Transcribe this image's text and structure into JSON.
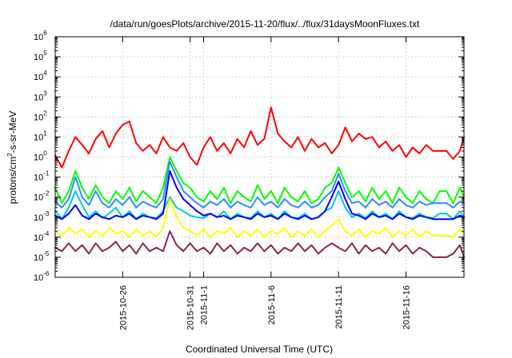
{
  "chart_data": {
    "type": "line",
    "title": "/data/run/goesPlots/archive/2015-11-20/flux/../flux/31daysMoonFluxes.txt",
    "xlabel": "Coordinated Universal Time (UTC)",
    "ylabel": "protons/cm²-s-sr-MeV",
    "ylabel_parts": {
      "a": "protons/cm",
      "b": "2",
      "c": "-s-sr-MeV"
    },
    "yscale": "log",
    "ylim": [
      1e-06,
      1000000.0
    ],
    "xlim_days": [
      0,
      30.3
    ],
    "grid": true,
    "legend": "none",
    "y_ticks": [
      {
        "exp": -6,
        "base": "10",
        "sup": "-6"
      },
      {
        "exp": -5,
        "base": "10",
        "sup": "-5"
      },
      {
        "exp": -4,
        "base": "10",
        "sup": "-4"
      },
      {
        "exp": -3,
        "base": "10",
        "sup": "-3"
      },
      {
        "exp": -2,
        "base": "10",
        "sup": "-2"
      },
      {
        "exp": -1,
        "base": "10",
        "sup": "-1"
      },
      {
        "exp": 0,
        "base": "10",
        "sup": "0"
      },
      {
        "exp": 1,
        "base": "10",
        "sup": "1"
      },
      {
        "exp": 2,
        "base": "10",
        "sup": "2"
      },
      {
        "exp": 3,
        "base": "10",
        "sup": "3"
      },
      {
        "exp": 4,
        "base": "10",
        "sup": "4"
      },
      {
        "exp": 5,
        "base": "10",
        "sup": "5"
      },
      {
        "exp": 6,
        "base": "10",
        "sup": "6"
      }
    ],
    "x_ticks": [
      {
        "day": 5.0,
        "label": "2015-10-26"
      },
      {
        "day": 10.0,
        "label": "2015-10-31"
      },
      {
        "day": 11.0,
        "label": "2015-11-1"
      },
      {
        "day": 16.0,
        "label": "2015-11-6"
      },
      {
        "day": 21.0,
        "label": "2015-11-11"
      },
      {
        "day": 26.0,
        "label": "2015-11-16"
      }
    ],
    "series": [
      {
        "name": "red",
        "color": "#ff0000",
        "x": [
          0,
          0.5,
          1,
          1.5,
          2,
          2.5,
          3,
          3.5,
          4,
          4.5,
          5,
          5.5,
          6,
          6.5,
          7,
          7.5,
          8,
          8.5,
          9,
          9.5,
          10,
          10.5,
          11,
          11.5,
          12,
          12.5,
          13,
          13.5,
          14,
          14.5,
          15,
          15.5,
          16,
          16.5,
          17,
          17.5,
          18,
          18.5,
          19,
          19.5,
          20,
          20.5,
          21,
          21.5,
          22,
          22.5,
          23,
          23.5,
          24,
          24.5,
          25,
          25.5,
          26,
          26.5,
          27,
          27.5,
          28,
          28.5,
          29,
          29.5,
          30,
          30.3
        ],
        "values": [
          1.2,
          0.3,
          2,
          10,
          4,
          1.5,
          8,
          20,
          3,
          15,
          40,
          60,
          5,
          2,
          4,
          1.5,
          10,
          3,
          2,
          5,
          1,
          0.4,
          3,
          10,
          2,
          5,
          1.5,
          8,
          3,
          20,
          4,
          8,
          300,
          15,
          6,
          3,
          10,
          2,
          8,
          3,
          5,
          1.5,
          4,
          30,
          6,
          15,
          8,
          10,
          3,
          6,
          2,
          4,
          1,
          3,
          1.5,
          4,
          2,
          2,
          2,
          0.8,
          2,
          10
        ]
      },
      {
        "name": "green",
        "color": "#00ff00",
        "x": [
          0,
          0.5,
          1,
          1.5,
          2,
          2.5,
          3,
          3.5,
          4,
          4.5,
          5,
          5.5,
          6,
          6.5,
          7,
          7.5,
          8,
          8.5,
          9,
          9.5,
          10,
          10.5,
          11,
          11.5,
          12,
          12.5,
          13,
          13.5,
          14,
          14.5,
          15,
          15.5,
          16,
          16.5,
          17,
          17.5,
          18,
          18.5,
          19,
          19.5,
          20,
          20.5,
          21,
          21.5,
          22,
          22.5,
          23,
          23.5,
          24,
          24.5,
          25,
          25.5,
          26,
          26.5,
          27,
          27.5,
          28,
          28.5,
          29,
          29.5,
          30,
          30.3
        ],
        "values": [
          0.03,
          0.005,
          0.02,
          0.2,
          0.03,
          0.008,
          0.04,
          0.01,
          0.005,
          0.02,
          0.008,
          0.03,
          0.006,
          0.02,
          0.01,
          0.005,
          0.03,
          1.0,
          0.2,
          0.05,
          0.03,
          0.01,
          0.006,
          0.02,
          0.008,
          0.03,
          0.005,
          0.02,
          0.01,
          0.006,
          0.04,
          0.008,
          0.02,
          0.005,
          0.03,
          0.01,
          0.006,
          0.02,
          0.005,
          0.008,
          0.03,
          0.05,
          0.3,
          0.05,
          0.01,
          0.02,
          0.006,
          0.03,
          0.008,
          0.02,
          0.005,
          0.03,
          0.01,
          0.005,
          0.02,
          0.008,
          0.005,
          0.02,
          0.02,
          0.005,
          0.03,
          0.01
        ]
      },
      {
        "name": "cyan",
        "color": "#00c8d8",
        "x": [
          0,
          0.5,
          1,
          1.5,
          2,
          2.5,
          3,
          3.5,
          4,
          4.5,
          5,
          5.5,
          6,
          6.5,
          7,
          7.5,
          8,
          8.5,
          9,
          9.5,
          10,
          10.5,
          11,
          11.5,
          12,
          12.5,
          13,
          13.5,
          14,
          14.5,
          15,
          15.5,
          16,
          16.5,
          17,
          17.5,
          18,
          18.5,
          19,
          19.5,
          20,
          20.5,
          21,
          21.5,
          22,
          22.5,
          23,
          23.5,
          24,
          24.5,
          25,
          25.5,
          26,
          26.5,
          27,
          27.5,
          28,
          28.5,
          29,
          29.5,
          30,
          30.3
        ],
        "values": [
          0.002,
          0.0008,
          0.003,
          0.02,
          0.004,
          0.001,
          0.002,
          0.0009,
          0.0015,
          0.003,
          0.001,
          0.002,
          0.0008,
          0.0015,
          0.001,
          0.0009,
          0.002,
          0.01,
          0.003,
          0.002,
          0.0012,
          0.001,
          0.0009,
          0.0015,
          0.001,
          0.002,
          0.0008,
          0.0015,
          0.001,
          0.0009,
          0.002,
          0.001,
          0.0015,
          0.0008,
          0.002,
          0.001,
          0.0009,
          0.0015,
          0.0008,
          0.001,
          0.002,
          0.003,
          0.02,
          0.003,
          0.001,
          0.0015,
          0.0009,
          0.002,
          0.001,
          0.0015,
          0.0008,
          0.002,
          0.001,
          0.0009,
          0.0015,
          0.001,
          0.0009,
          0.0015,
          0.0015,
          0.0008,
          0.002,
          0.001
        ]
      },
      {
        "name": "light-blue",
        "color": "#2f8cff",
        "x": [
          0,
          0.5,
          1,
          1.5,
          2,
          2.5,
          3,
          3.5,
          4,
          4.5,
          5,
          5.5,
          6,
          6.5,
          7,
          7.5,
          8,
          8.5,
          9,
          9.5,
          10,
          10.5,
          11,
          11.5,
          12,
          12.5,
          13,
          13.5,
          14,
          14.5,
          15,
          15.5,
          16,
          16.5,
          17,
          17.5,
          18,
          18.5,
          19,
          19.5,
          20,
          20.5,
          21,
          21.5,
          22,
          22.5,
          23,
          23.5,
          24,
          24.5,
          25,
          25.5,
          26,
          26.5,
          27,
          27.5,
          28,
          28.5,
          29,
          29.5,
          30,
          30.3
        ],
        "values": [
          0.006,
          0.003,
          0.008,
          0.1,
          0.01,
          0.004,
          0.02,
          0.005,
          0.003,
          0.008,
          0.004,
          0.01,
          0.003,
          0.006,
          0.004,
          0.003,
          0.008,
          0.6,
          0.1,
          0.02,
          0.01,
          0.005,
          0.003,
          0.006,
          0.004,
          0.008,
          0.003,
          0.006,
          0.004,
          0.003,
          0.01,
          0.004,
          0.006,
          0.003,
          0.008,
          0.004,
          0.003,
          0.006,
          0.003,
          0.004,
          0.01,
          0.02,
          0.15,
          0.02,
          0.005,
          0.006,
          0.003,
          0.008,
          0.004,
          0.006,
          0.003,
          0.008,
          0.004,
          0.003,
          0.006,
          0.004,
          0.005,
          0.005,
          0.005,
          0.003,
          0.006,
          0.005
        ]
      },
      {
        "name": "blue",
        "color": "#0000ff",
        "x": [
          0,
          0.5,
          1,
          1.5,
          2,
          2.5,
          3,
          3.5,
          4,
          4.5,
          5,
          5.5,
          6,
          6.5,
          7,
          7.5,
          8,
          8.5,
          9,
          9.5,
          10,
          10.5,
          11,
          11.5,
          12,
          12.5,
          13,
          13.5,
          14,
          14.5,
          15,
          15.5,
          16,
          16.5,
          17,
          17.5,
          18,
          18.5,
          19,
          19.5,
          20,
          20.5,
          21,
          21.5,
          22,
          22.5,
          23,
          23.5,
          24,
          24.5,
          25,
          25.5,
          26,
          26.5,
          27,
          27.5,
          28,
          28.5,
          29,
          29.5,
          30,
          30.3
        ],
        "values": [
          0.0012,
          0.0008,
          0.0015,
          0.004,
          0.0012,
          0.0008,
          0.0015,
          0.001,
          0.0008,
          0.0012,
          0.001,
          0.0015,
          0.0008,
          0.0012,
          0.001,
          0.0008,
          0.0015,
          0.2,
          0.03,
          0.008,
          0.004,
          0.002,
          0.0012,
          0.0015,
          0.001,
          0.0012,
          0.0008,
          0.0012,
          0.001,
          0.0008,
          0.0015,
          0.001,
          0.0012,
          0.0008,
          0.0015,
          0.001,
          0.0008,
          0.0012,
          0.0008,
          0.001,
          0.002,
          0.01,
          0.06,
          0.008,
          0.0015,
          0.0012,
          0.0008,
          0.0015,
          0.001,
          0.0012,
          0.0008,
          0.0015,
          0.001,
          0.0008,
          0.0012,
          0.001,
          0.0008,
          0.0008,
          0.0008,
          0.0008,
          0.0012,
          0.001
        ]
      },
      {
        "name": "yellow",
        "color": "#ffff00",
        "x": [
          0,
          0.5,
          1,
          1.5,
          2,
          2.5,
          3,
          3.5,
          4,
          4.5,
          5,
          5.5,
          6,
          6.5,
          7,
          7.5,
          8,
          8.5,
          9,
          9.5,
          10,
          10.5,
          11,
          11.5,
          12,
          12.5,
          13,
          13.5,
          14,
          14.5,
          15,
          15.5,
          16,
          16.5,
          17,
          17.5,
          18,
          18.5,
          19,
          19.5,
          20,
          20.5,
          21,
          21.5,
          22,
          22.5,
          23,
          23.5,
          24,
          24.5,
          25,
          25.5,
          26,
          26.5,
          27,
          27.5,
          28,
          28.5,
          29,
          29.5,
          30,
          30.3
        ],
        "values": [
          0.0002,
          0.00012,
          0.0003,
          0.00015,
          0.00025,
          0.0001,
          0.0002,
          0.00012,
          0.0003,
          0.00015,
          0.0002,
          0.0001,
          0.00025,
          0.00012,
          0.0002,
          0.0001,
          0.0003,
          0.008,
          0.001,
          0.0003,
          0.0002,
          0.00012,
          0.00025,
          0.0001,
          0.0002,
          0.00015,
          0.0003,
          0.0001,
          0.0002,
          0.00012,
          0.00025,
          0.0001,
          0.0002,
          0.00015,
          0.0003,
          0.0001,
          0.0002,
          0.00012,
          0.00025,
          0.0001,
          0.0002,
          0.0004,
          0.0008,
          0.0002,
          0.00012,
          0.00025,
          0.0001,
          0.0002,
          0.00015,
          0.0003,
          0.0001,
          0.0002,
          0.00012,
          0.00025,
          0.0001,
          0.0002,
          0.00012,
          0.00012,
          0.00012,
          0.0001,
          0.00025,
          0.00015
        ]
      },
      {
        "name": "purple",
        "color": "#8b2252",
        "x": [
          0,
          0.5,
          1,
          1.5,
          2,
          2.5,
          3,
          3.5,
          4,
          4.5,
          5,
          5.5,
          6,
          6.5,
          7,
          7.5,
          8,
          8.5,
          9,
          9.5,
          10,
          10.5,
          11,
          11.5,
          12,
          12.5,
          13,
          13.5,
          14,
          14.5,
          15,
          15.5,
          16,
          16.5,
          17,
          17.5,
          18,
          18.5,
          19,
          19.5,
          20,
          20.5,
          21,
          21.5,
          22,
          22.5,
          23,
          23.5,
          24,
          24.5,
          25,
          25.5,
          26,
          26.5,
          27,
          27.5,
          28,
          28.5,
          29,
          29.5,
          30,
          30.3
        ],
        "values": [
          3e-05,
          2e-05,
          5e-05,
          2e-05,
          4e-05,
          1.5e-05,
          5e-05,
          2e-05,
          3e-05,
          6e-05,
          2e-05,
          4e-05,
          1.5e-05,
          5e-05,
          2e-05,
          3e-05,
          2e-05,
          0.0002,
          4e-05,
          2e-05,
          5e-05,
          2e-05,
          3e-05,
          1.5e-05,
          5e-05,
          2e-05,
          4e-05,
          1.5e-05,
          3e-05,
          2e-05,
          5e-05,
          2e-05,
          4e-05,
          1.5e-05,
          3e-05,
          2e-05,
          5e-05,
          2e-05,
          4e-05,
          1.5e-05,
          3e-05,
          5e-05,
          3e-05,
          2e-05,
          5e-05,
          1.5e-05,
          4e-05,
          2e-05,
          3e-05,
          1.5e-05,
          5e-05,
          2e-05,
          4e-05,
          1.5e-05,
          3e-05,
          2e-05,
          1e-05,
          1e-05,
          1e-05,
          1.5e-05,
          4e-05,
          1e-05
        ]
      }
    ]
  }
}
